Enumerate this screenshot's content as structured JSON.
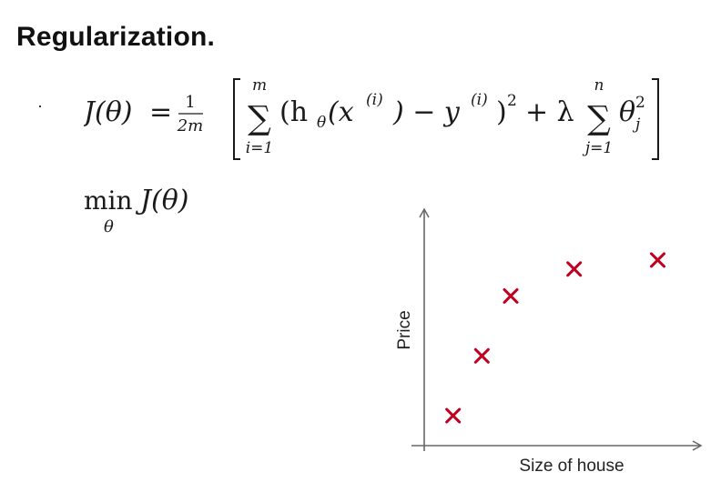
{
  "slide": {
    "title": "Regularization."
  },
  "cost_function": {
    "lhs": "J(θ)",
    "equals": "=",
    "frac_num": "1",
    "frac_den": "2m",
    "sum1_top": "m",
    "sum1_bottom": "i=1",
    "sum_symbol": "∑",
    "term1": "(h",
    "term1_sub": "θ",
    "term1_rest": "(x",
    "sup_i": "(i)",
    "minus_y": ") − y",
    "close_sq": ")",
    "power2": "2",
    "plus_lambda": "+ λ",
    "sum2_top": "n",
    "sum2_bottom": "j=1",
    "theta": "θ",
    "theta_sub": "j",
    "theta_sup": "2"
  },
  "objective": {
    "min": "min",
    "min_sub": "θ",
    "expr": "J(θ)"
  },
  "chart_data": {
    "type": "scatter",
    "xlabel": "Size of house",
    "ylabel": "Price",
    "marker": "x",
    "marker_color": "#c00020",
    "points": [
      {
        "x": 1.0,
        "y": 1.0
      },
      {
        "x": 2.0,
        "y": 3.0
      },
      {
        "x": 3.0,
        "y": 5.0
      },
      {
        "x": 5.2,
        "y": 5.9
      },
      {
        "x": 8.1,
        "y": 6.2
      }
    ],
    "xlim": [
      0,
      9.6
    ],
    "ylim": [
      0,
      7.9
    ]
  }
}
